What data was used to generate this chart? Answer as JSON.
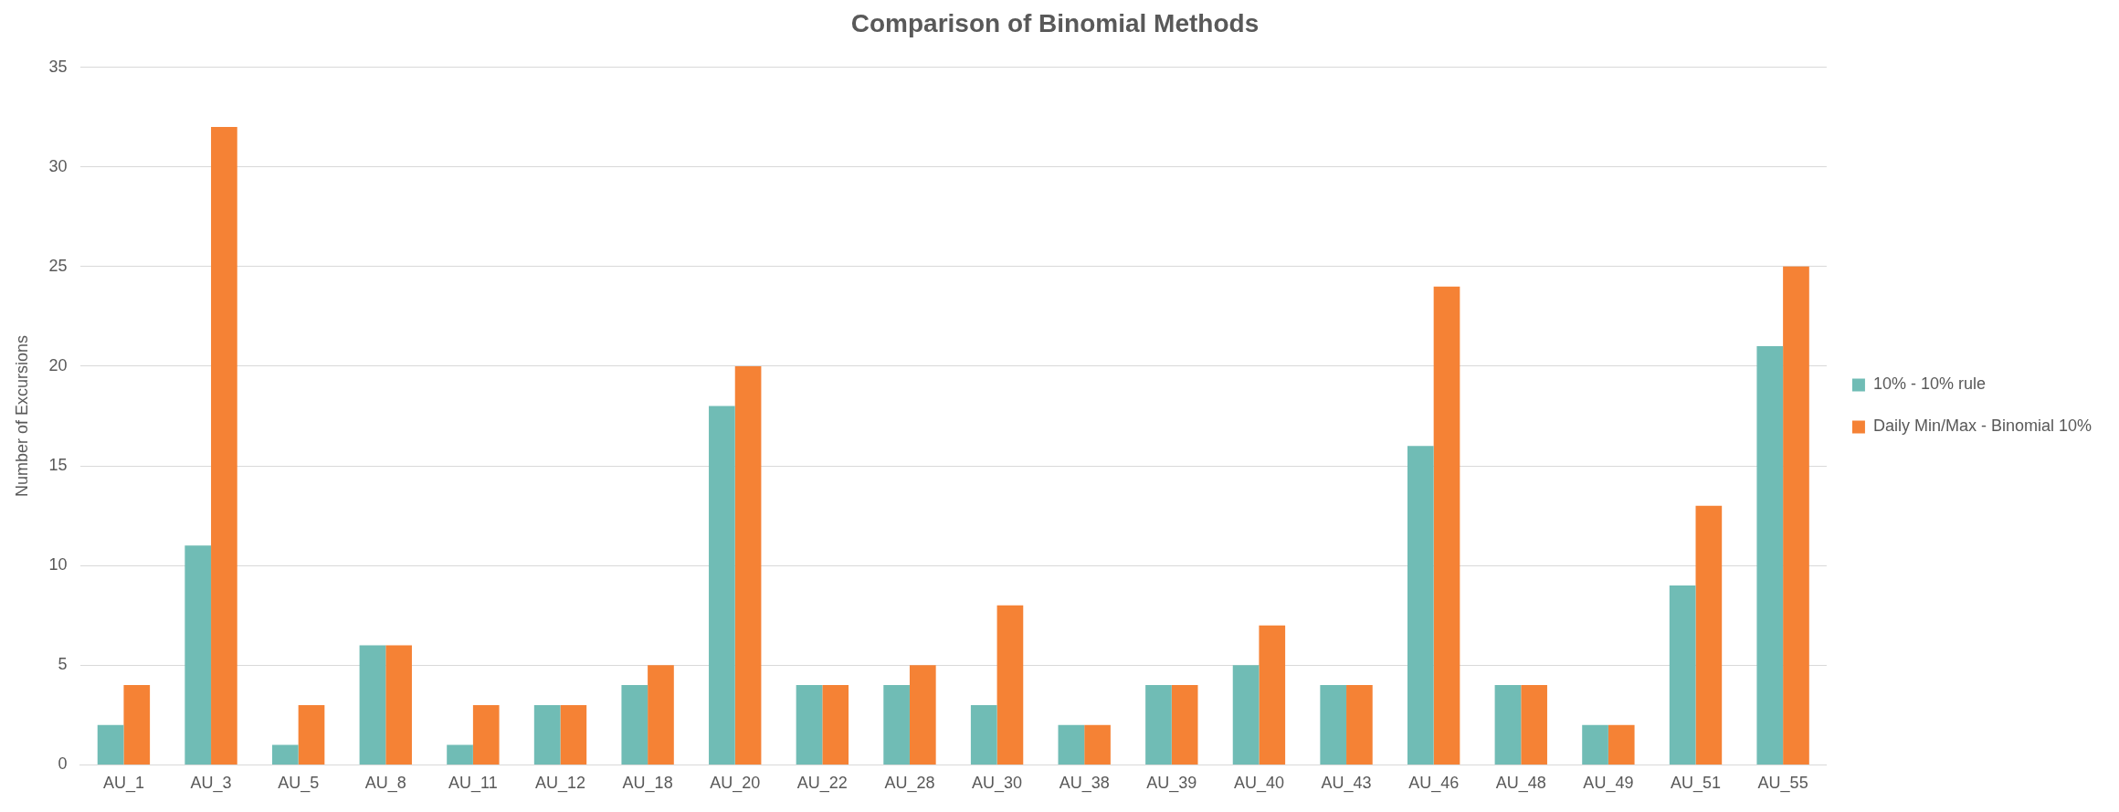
{
  "chart_data": {
    "type": "bar",
    "title": "Comparison of Binomial Methods",
    "ylabel": "Number of Excursions",
    "categories": [
      "AU_1",
      "AU_3",
      "AU_5",
      "AU_8",
      "AU_11",
      "AU_12",
      "AU_18",
      "AU_20",
      "AU_22",
      "AU_28",
      "AU_30",
      "AU_38",
      "AU_39",
      "AU_40",
      "AU_43",
      "AU_46",
      "AU_48",
      "AU_49",
      "AU_51",
      "AU_55"
    ],
    "series": [
      {
        "name": "10% - 10% rule",
        "color": "#70bcb5",
        "values": [
          2,
          11,
          1,
          6,
          1,
          3,
          4,
          18,
          4,
          4,
          3,
          2,
          4,
          5,
          4,
          16,
          4,
          2,
          9,
          21
        ]
      },
      {
        "name": "Daily Min/Max - Binomial 10%",
        "color": "#f58235",
        "values": [
          4,
          32,
          3,
          6,
          3,
          3,
          5,
          20,
          4,
          5,
          8,
          2,
          4,
          7,
          4,
          24,
          4,
          2,
          13,
          25
        ]
      }
    ],
    "ylim": [
      0,
      35
    ],
    "yticks": [
      0,
      5,
      10,
      15,
      20,
      25,
      30,
      35
    ],
    "grid": "y",
    "legend": "right"
  }
}
